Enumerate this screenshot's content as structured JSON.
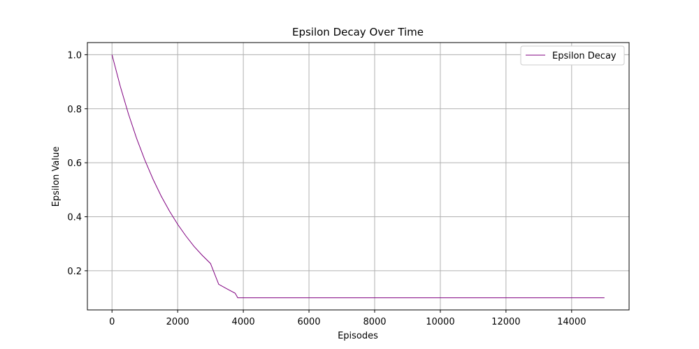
{
  "chart_data": {
    "type": "line",
    "title": "Epsilon Decay Over Time",
    "xlabel": "Episodes",
    "ylabel": "Epsilon Value",
    "xlim": [
      -750,
      15750
    ],
    "ylim": [
      0.055,
      1.045
    ],
    "xticks": [
      0,
      2000,
      4000,
      6000,
      8000,
      10000,
      12000,
      14000
    ],
    "xtick_labels": [
      "0",
      "2000",
      "4000",
      "6000",
      "8000",
      "10000",
      "12000",
      "14000"
    ],
    "yticks": [
      0.2,
      0.4,
      0.6,
      0.8,
      1.0
    ],
    "ytick_labels": [
      "0.2",
      "0.4",
      "0.6",
      "0.8",
      "1.0"
    ],
    "grid": true,
    "legend_position": "top-right",
    "series": [
      {
        "name": "Epsilon Decay",
        "color": "#800080",
        "x": [
          0,
          250,
          500,
          750,
          1000,
          1250,
          1500,
          1750,
          2000,
          2250,
          2500,
          2750,
          3000,
          3250,
          3500,
          3750,
          3830,
          4000,
          6000,
          8000,
          10000,
          12000,
          14000,
          15000
        ],
        "y": [
          1.0,
          0.884,
          0.781,
          0.69,
          0.61,
          0.539,
          0.476,
          0.421,
          0.372,
          0.329,
          0.29,
          0.257,
          0.227,
          0.15,
          0.133,
          0.117,
          0.1,
          0.1,
          0.1,
          0.1,
          0.1,
          0.1,
          0.1,
          0.1
        ]
      }
    ]
  }
}
